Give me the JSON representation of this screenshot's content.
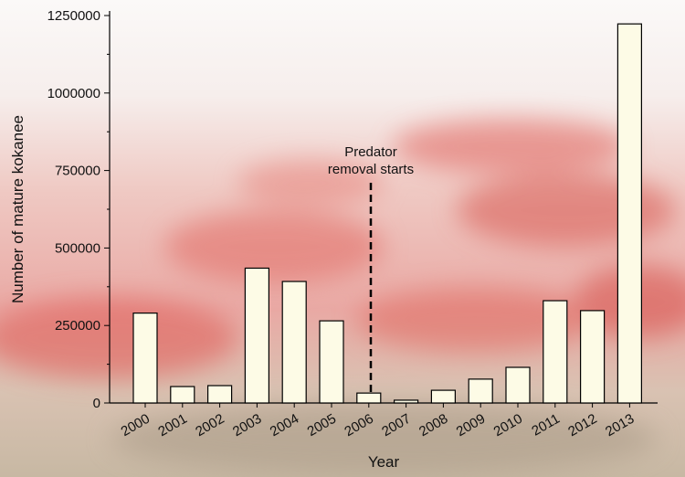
{
  "chart_data": {
    "type": "bar",
    "x_label": "Year",
    "y_label": "Number of mature kokanee",
    "annotation": [
      "Predator",
      "removal starts"
    ],
    "categories": [
      "2000",
      "2001",
      "2002",
      "2003",
      "2004",
      "2005",
      "2006",
      "2007",
      "2008",
      "2009",
      "2010",
      "2011",
      "2012",
      "2013"
    ],
    "values": [
      290000,
      53000,
      56000,
      435000,
      392000,
      265000,
      32000,
      9000,
      41000,
      77000,
      115000,
      330000,
      298000,
      1223000
    ],
    "color": "#fdfbe6",
    "ylim": [
      0,
      1250000
    ],
    "yticks": [
      0,
      250000,
      500000,
      750000,
      1000000,
      1250000
    ]
  }
}
